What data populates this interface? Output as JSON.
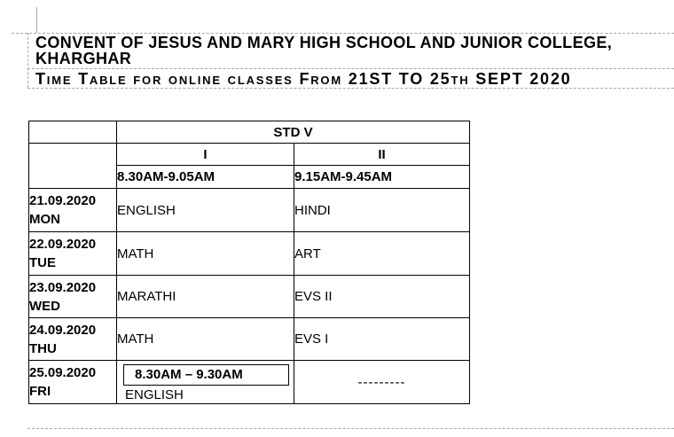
{
  "heading": {
    "line1": "CONVENT OF JESUS AND MARY HIGH SCHOOL AND JUNIOR COLLEGE,",
    "line2": "KHARGHAR",
    "subtitle": "Time Table for online classes From 21ST TO 25th SEPT 2020"
  },
  "timetable": {
    "class_header": "STD V",
    "period_headers": [
      "I",
      "II"
    ],
    "time_headers": [
      "8.30AM-9.05AM",
      "9.15AM-9.45AM"
    ],
    "rows": [
      {
        "date": "21.09.2020",
        "day": "MON",
        "period1": "ENGLISH",
        "period2": "HINDI"
      },
      {
        "date": "22.09.2020",
        "day": "TUE",
        "period1": "MATH",
        "period2": "ART"
      },
      {
        "date": "23.09.2020",
        "day": "WED",
        "period1": "MARATHI",
        "period2": "EVS II"
      },
      {
        "date": "24.09.2020",
        "day": "THU",
        "period1": "MATH",
        "period2": "EVS I"
      },
      {
        "date": "25.09.2020",
        "day": "FRI",
        "period1_time_note": "8.30AM – 9.30AM",
        "period1": "ENGLISH",
        "period2": "---------"
      }
    ]
  },
  "colors": {
    "text": "#000000",
    "table_border": "#000000",
    "boundary_line": "#a6a6a6"
  }
}
